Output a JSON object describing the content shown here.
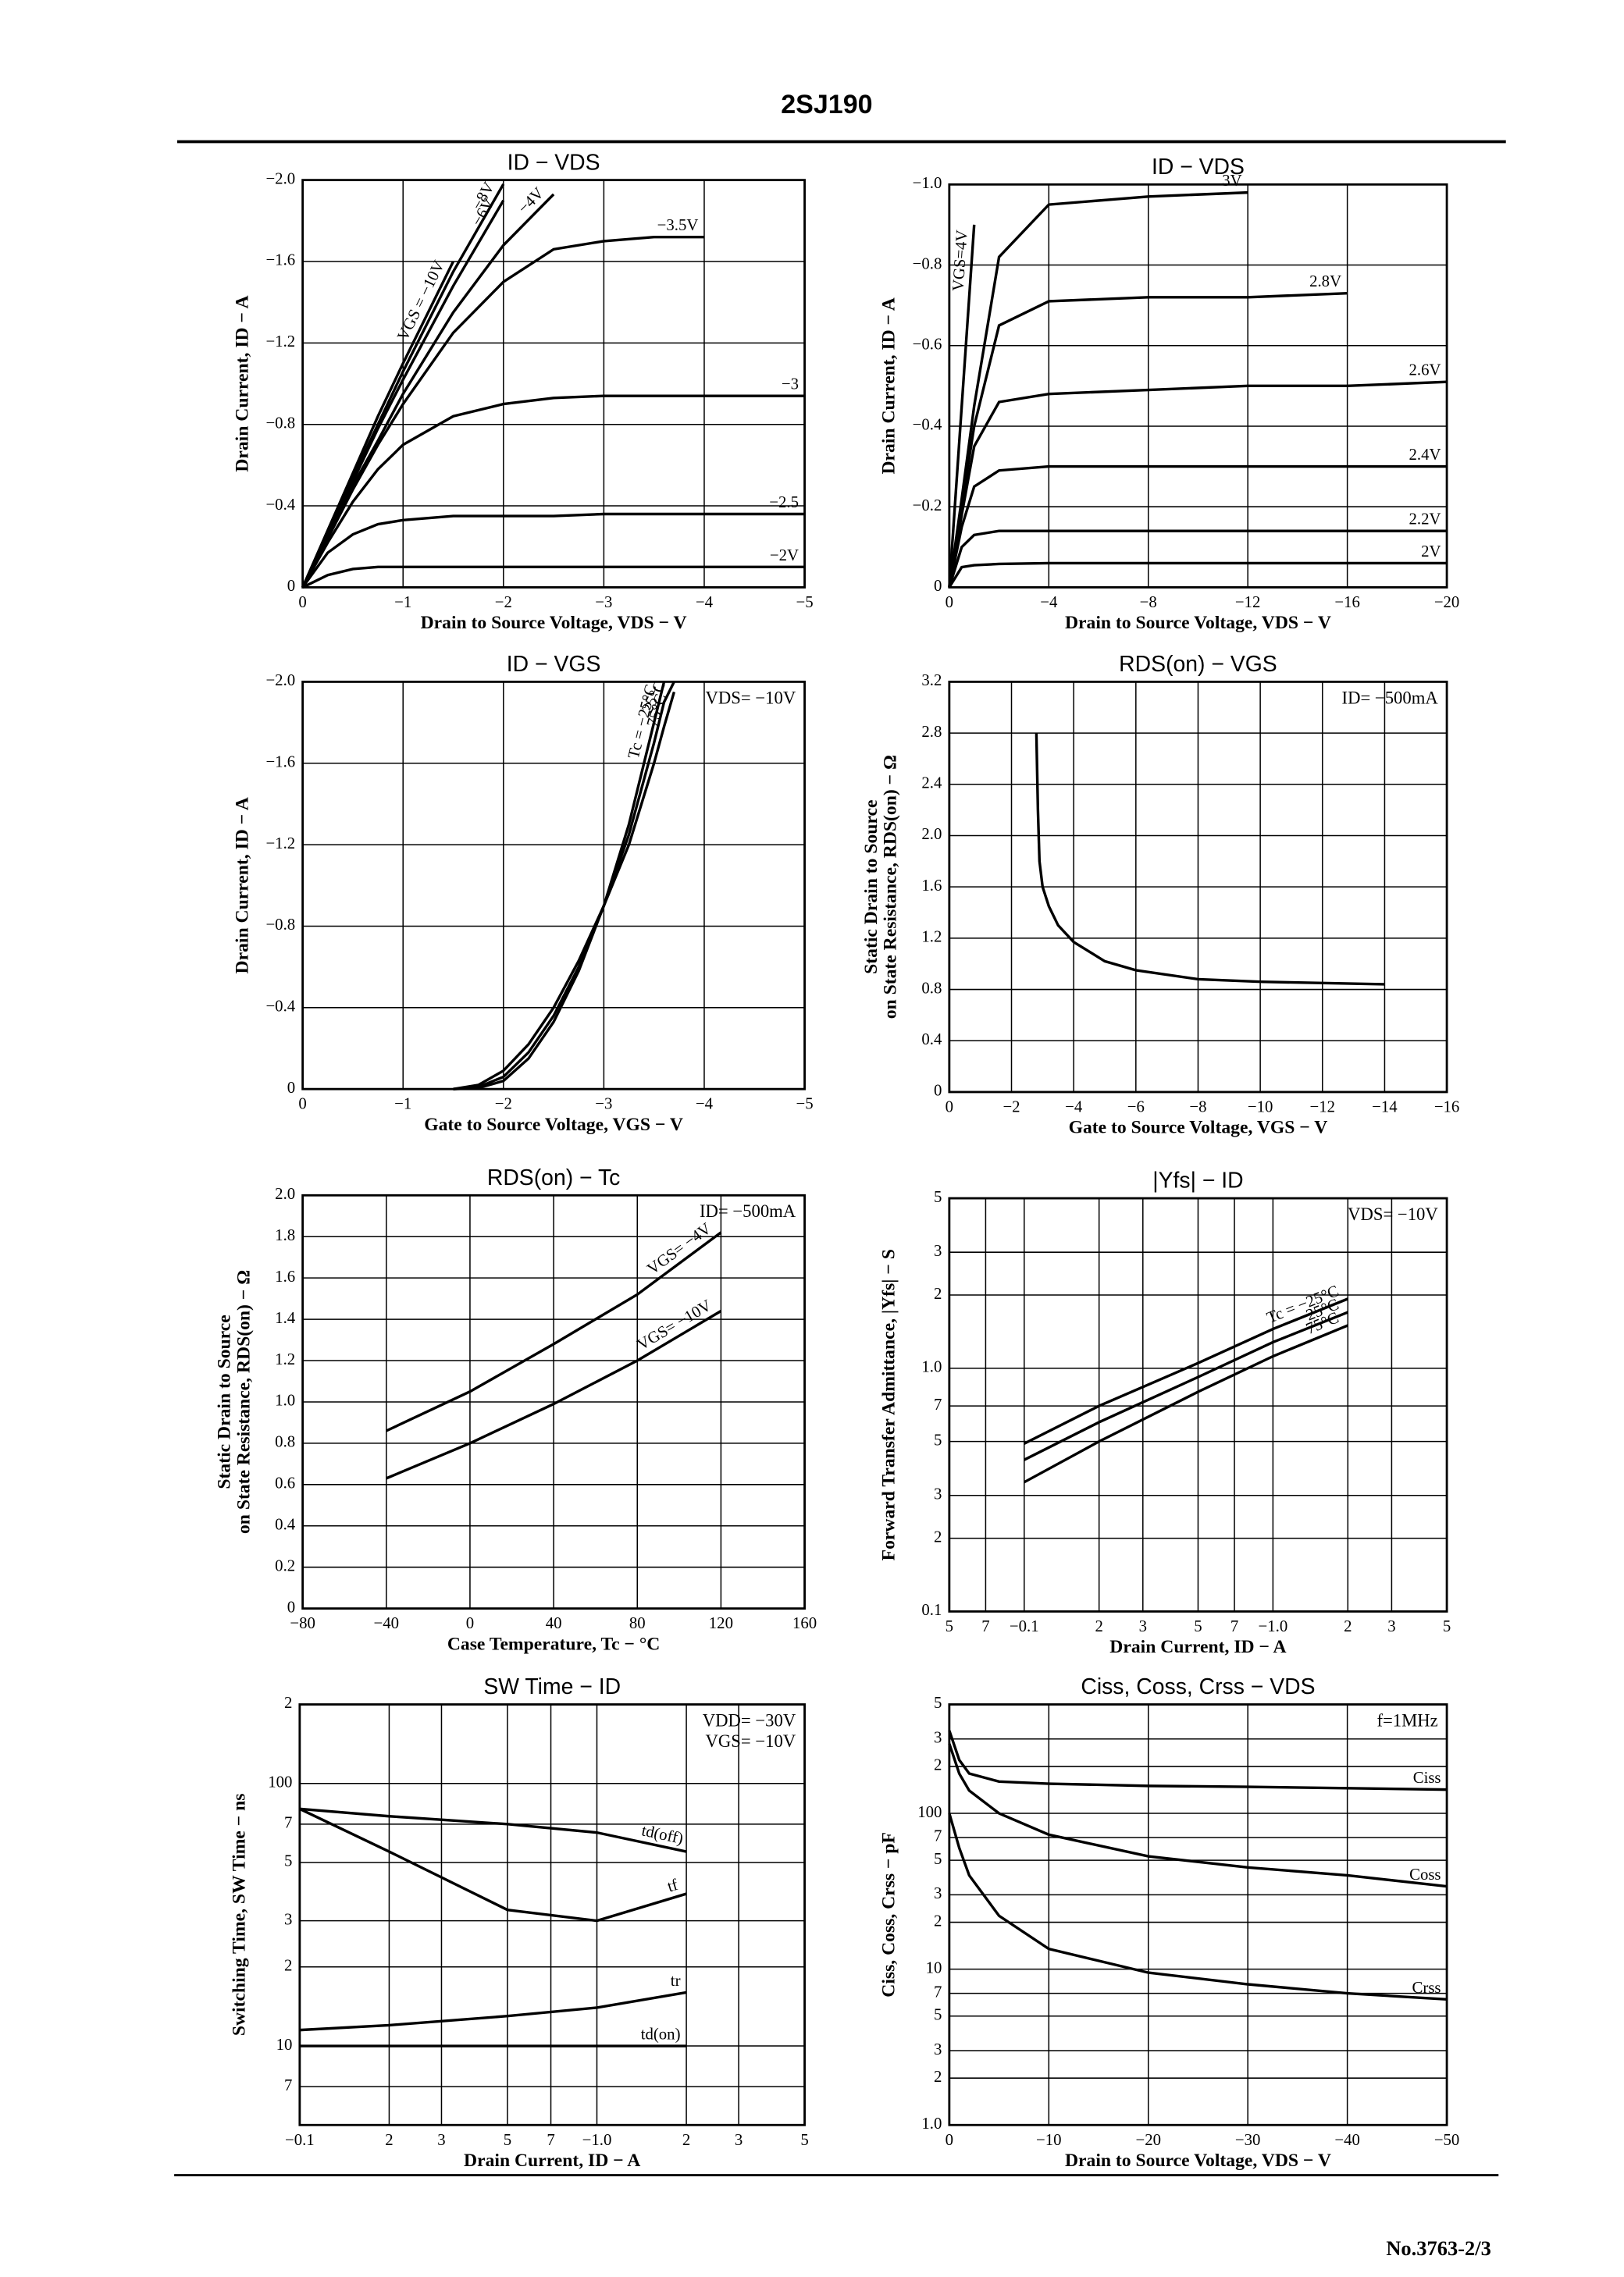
{
  "header": {
    "title": "2SJ190"
  },
  "footer": {
    "page": "No.3763-2/3"
  },
  "chart_data": [
    {
      "type": "line",
      "title": "ID − VDS",
      "xlabel": "Drain to Source Voltage, VDS − V",
      "ylabel": "Drain Current, ID − A",
      "color": "#000000",
      "grid": true,
      "xlim": [
        0,
        -5
      ],
      "ylim": [
        0,
        -2
      ],
      "xticks": [
        0,
        {
          "value": -1,
          "label": "−1"
        },
        {
          "value": -2,
          "label": "−2"
        },
        {
          "value": -3,
          "label": "−3"
        },
        {
          "value": -4,
          "label": "−4"
        },
        {
          "value": -5,
          "label": "−5"
        }
      ],
      "yticks": [
        0,
        {
          "value": -0.4,
          "label": "−0.4"
        },
        {
          "value": -0.8,
          "label": "−0.8"
        },
        {
          "value": -1.2,
          "label": "−1.2"
        },
        {
          "value": -1.6,
          "label": "−1.6"
        },
        {
          "value": -2,
          "label": "−2.0"
        }
      ],
      "x": [
        0,
        -0.25,
        -0.5,
        -0.75,
        -1,
        -1.5,
        -2,
        -2.5,
        -3,
        -3.5,
        -4,
        -4.5,
        -5
      ],
      "series": [
        {
          "name": "VGS = −10V",
          "values": [
            0,
            -0.28,
            -0.56,
            -0.84,
            -1.1,
            -1.6,
            null,
            null,
            null,
            null,
            null,
            null,
            null
          ]
        },
        {
          "name": "−8V",
          "values": [
            0,
            -0.27,
            -0.54,
            -0.8,
            -1.06,
            -1.55,
            -1.98,
            null,
            null,
            null,
            null,
            null,
            null
          ]
        },
        {
          "name": "−6V",
          "values": [
            0,
            -0.26,
            -0.52,
            -0.78,
            -1.02,
            -1.48,
            -1.9,
            null,
            null,
            null,
            null,
            null,
            null
          ]
        },
        {
          "name": "−4V",
          "values": [
            0,
            -0.25,
            -0.5,
            -0.72,
            -0.95,
            -1.35,
            -1.68,
            -1.93,
            null,
            null,
            null,
            null,
            null
          ]
        },
        {
          "name": "−3.5V",
          "values": [
            0,
            -0.24,
            -0.48,
            -0.7,
            -0.9,
            -1.25,
            -1.5,
            -1.66,
            -1.7,
            -1.72,
            -1.72,
            null,
            null
          ]
        },
        {
          "name": "−3",
          "values": [
            0,
            -0.22,
            -0.42,
            -0.58,
            -0.7,
            -0.84,
            -0.9,
            -0.93,
            -0.94,
            -0.94,
            -0.94,
            -0.94,
            -0.94
          ]
        },
        {
          "name": "−2.5",
          "values": [
            0,
            -0.17,
            -0.26,
            -0.31,
            -0.33,
            -0.35,
            -0.35,
            -0.35,
            -0.36,
            -0.36,
            -0.36,
            -0.36,
            -0.36
          ]
        },
        {
          "name": "−2V",
          "values": [
            0,
            -0.06,
            -0.09,
            -0.1,
            -0.1,
            -0.1,
            -0.1,
            -0.1,
            -0.1,
            -0.1,
            -0.1,
            -0.1,
            -0.1
          ]
        }
      ]
    },
    {
      "type": "line",
      "title": "ID − VDS",
      "xlabel": "Drain to Source Voltage, VDS − V",
      "ylabel": "Drain Current, ID − A",
      "color": "#000000",
      "grid": true,
      "xlim": [
        0,
        -20
      ],
      "ylim": [
        0,
        -1
      ],
      "xticks": [
        0,
        {
          "value": -4,
          "label": "−4"
        },
        {
          "value": -8,
          "label": "−8"
        },
        {
          "value": -12,
          "label": "−12"
        },
        {
          "value": -16,
          "label": "−16"
        },
        {
          "value": -20,
          "label": "−20"
        }
      ],
      "yticks": [
        0,
        {
          "value": -0.2,
          "label": "−0.2"
        },
        {
          "value": -0.4,
          "label": "−0.4"
        },
        {
          "value": -0.6,
          "label": "−0.6"
        },
        {
          "value": -0.8,
          "label": "−0.8"
        },
        {
          "value": -1,
          "label": "−1.0"
        }
      ],
      "x": [
        0,
        -0.5,
        -1,
        -2,
        -4,
        -8,
        -12,
        -16,
        -20
      ],
      "series": [
        {
          "name": "VGS=4V",
          "values": [
            0,
            -0.45,
            -0.9,
            null,
            null,
            null,
            null,
            null,
            null
          ]
        },
        {
          "name": "3V",
          "values": [
            0,
            -0.22,
            -0.45,
            -0.82,
            -0.95,
            -0.97,
            -0.98,
            null,
            null
          ]
        },
        {
          "name": "2.8V",
          "values": [
            0,
            -0.2,
            -0.4,
            -0.65,
            -0.71,
            -0.72,
            -0.72,
            -0.73,
            null
          ]
        },
        {
          "name": "2.6V",
          "values": [
            0,
            -0.18,
            -0.35,
            -0.46,
            -0.48,
            -0.49,
            -0.5,
            -0.5,
            -0.51
          ]
        },
        {
          "name": "2.4V",
          "values": [
            0,
            -0.15,
            -0.25,
            -0.29,
            -0.3,
            -0.3,
            -0.3,
            -0.3,
            -0.3
          ]
        },
        {
          "name": "2.2V",
          "values": [
            0,
            -0.1,
            -0.13,
            -0.14,
            -0.14,
            -0.14,
            -0.14,
            -0.14,
            -0.14
          ]
        },
        {
          "name": "2V",
          "values": [
            0,
            -0.05,
            -0.055,
            -0.058,
            -0.06,
            -0.06,
            -0.06,
            -0.06,
            -0.06
          ]
        }
      ]
    },
    {
      "type": "line",
      "title": "ID − VGS",
      "xlabel": "Gate to Source Voltage, VGS − V",
      "ylabel": "Drain Current, ID − A",
      "color": "#000000",
      "grid": true,
      "annotations": [
        "VDS= −10V"
      ],
      "xlim": [
        0,
        -5
      ],
      "ylim": [
        0,
        -2
      ],
      "xticks": [
        0,
        {
          "value": -1,
          "label": "−1"
        },
        {
          "value": -2,
          "label": "−2"
        },
        {
          "value": -3,
          "label": "−3"
        },
        {
          "value": -4,
          "label": "−4"
        },
        {
          "value": -5,
          "label": "−5"
        }
      ],
      "yticks": [
        0,
        {
          "value": -0.4,
          "label": "−0.4"
        },
        {
          "value": -0.8,
          "label": "−0.8"
        },
        {
          "value": -1.2,
          "label": "−1.2"
        },
        {
          "value": -1.6,
          "label": "−1.6"
        },
        {
          "value": -2,
          "label": "−2.0"
        }
      ],
      "x": [
        -1.5,
        -1.75,
        -2,
        -2.25,
        -2.5,
        -2.75,
        -3,
        -3.25,
        -3.5,
        -3.6,
        -3.7
      ],
      "series": [
        {
          "name": "Tc = −25°C",
          "values": [
            0,
            -0.005,
            -0.04,
            -0.15,
            -0.33,
            -0.58,
            -0.9,
            -1.3,
            -1.8,
            -2,
            null
          ]
        },
        {
          "name": "25°C",
          "values": [
            0,
            -0.01,
            -0.06,
            -0.18,
            -0.36,
            -0.6,
            -0.9,
            -1.25,
            -1.7,
            -1.9,
            -2
          ]
        },
        {
          "name": "75°C",
          "values": [
            0,
            -0.02,
            -0.09,
            -0.22,
            -0.4,
            -0.63,
            -0.9,
            -1.2,
            -1.6,
            -1.78,
            -1.95
          ]
        }
      ]
    },
    {
      "type": "line",
      "title": "RDS(on) − VGS",
      "xlabel": "Gate to Source Voltage, VGS − V",
      "ylabel": [
        "Static Drain to Source",
        "on State Resistance, RDS(on) − Ω"
      ],
      "color": "#000000",
      "grid": true,
      "annotations": [
        "ID= −500mA"
      ],
      "xlim": [
        0,
        -16
      ],
      "ylim": [
        0,
        3.2
      ],
      "xticks": [
        0,
        {
          "value": -2,
          "label": "−2"
        },
        {
          "value": -4,
          "label": "−4"
        },
        {
          "value": -6,
          "label": "−6"
        },
        {
          "value": -8,
          "label": "−8"
        },
        {
          "value": -10,
          "label": "−10"
        },
        {
          "value": -12,
          "label": "−12"
        },
        {
          "value": -14,
          "label": "−14"
        },
        {
          "value": -16,
          "label": "−16"
        }
      ],
      "yticks": [
        0,
        0.4,
        0.8,
        1.2,
        1.6,
        {
          "value": 2,
          "label": "2.0"
        },
        2.4,
        2.8,
        3.2
      ],
      "x": [
        -2.8,
        -2.85,
        -2.9,
        -3,
        -3.2,
        -3.5,
        -4,
        -5,
        -6,
        -8,
        -10,
        -12,
        -14
      ],
      "series": [
        {
          "values": [
            2.8,
            2.2,
            1.8,
            1.6,
            1.45,
            1.3,
            1.17,
            1.02,
            0.95,
            0.88,
            0.86,
            0.85,
            0.84
          ]
        }
      ]
    },
    {
      "type": "line",
      "title": "RDS(on) − Tc",
      "xlabel": "Case Temperature, Tc − °C",
      "ylabel": [
        "Static Drain to Source",
        "on State Resistance, RDS(on) − Ω"
      ],
      "color": "#000000",
      "grid": true,
      "annotations": [
        "ID= −500mA"
      ],
      "xlim": [
        -80,
        160
      ],
      "ylim": [
        0,
        2
      ],
      "xticks": [
        {
          "value": -80,
          "label": "−80"
        },
        {
          "value": -40,
          "label": "−40"
        },
        0,
        40,
        80,
        120,
        160
      ],
      "yticks": [
        0,
        0.2,
        0.4,
        0.6,
        0.8,
        {
          "value": 1,
          "label": "1.0"
        },
        1.2,
        1.4,
        1.6,
        1.8,
        {
          "value": 2,
          "label": "2.0"
        }
      ],
      "x": [
        -40,
        0,
        40,
        80,
        120
      ],
      "series": [
        {
          "name": "VGS= −4V",
          "values": [
            0.86,
            1.05,
            1.28,
            1.52,
            1.82
          ]
        },
        {
          "name": "VGS= −10V",
          "values": [
            0.63,
            0.8,
            0.99,
            1.2,
            1.44
          ]
        }
      ]
    },
    {
      "type": "line",
      "title": "|Yfs| − ID",
      "xlabel": "Drain Current, ID − A",
      "ylabel": "Forward Transfer Admittance, |Yfs| − S",
      "color": "#000000",
      "grid": true,
      "xscale": "log",
      "yscale": "log",
      "annotations": [
        "VDS= −10V"
      ],
      "xlim": [
        0.05,
        5
      ],
      "ylim": [
        0.1,
        5
      ],
      "xticks": [
        {
          "value": 0.05,
          "label": "5"
        },
        {
          "value": 0.07,
          "label": "7"
        },
        {
          "value": 0.1,
          "label": "−0.1"
        },
        {
          "value": 0.2,
          "label": "2"
        },
        {
          "value": 0.3,
          "label": "3"
        },
        {
          "value": 0.5,
          "label": "5"
        },
        {
          "value": 0.7,
          "label": "7"
        },
        {
          "value": 1,
          "label": "−1.0"
        },
        2,
        3,
        5
      ],
      "yticks": [
        0.1,
        {
          "value": 0.2,
          "label": "2"
        },
        {
          "value": 0.3,
          "label": "3"
        },
        {
          "value": 0.5,
          "label": "5"
        },
        {
          "value": 0.7,
          "label": "7"
        },
        {
          "value": 1,
          "label": "1.0"
        },
        2,
        3,
        5
      ],
      "x": [
        0.1,
        0.2,
        0.5,
        1,
        2
      ],
      "series": [
        {
          "name": "Tc = −25°C",
          "values": [
            0.49,
            0.7,
            1.05,
            1.45,
            1.93
          ]
        },
        {
          "name": "25°C",
          "values": [
            0.42,
            0.6,
            0.92,
            1.28,
            1.7
          ]
        },
        {
          "name": "75°C",
          "values": [
            0.34,
            0.5,
            0.8,
            1.12,
            1.5
          ]
        }
      ]
    },
    {
      "type": "line",
      "title": "SW Time − ID",
      "xlabel": "Drain Current, ID − A",
      "ylabel": "Switching Time, SW Time − ns",
      "color": "#000000",
      "grid": true,
      "xscale": "log",
      "yscale": "log",
      "annotations": [
        "VDD= −30V",
        "VGS= −10V"
      ],
      "xlim": [
        0.1,
        5
      ],
      "ylim": [
        5,
        200
      ],
      "xticks": [
        {
          "value": 0.1,
          "label": "−0.1"
        },
        {
          "value": 0.2,
          "label": "2"
        },
        {
          "value": 0.3,
          "label": "3"
        },
        {
          "value": 0.5,
          "label": "5"
        },
        {
          "value": 0.7,
          "label": "7"
        },
        {
          "value": 1,
          "label": "−1.0"
        },
        2,
        3,
        5
      ],
      "yticks": [
        7,
        10,
        {
          "value": 20,
          "label": "2"
        },
        {
          "value": 30,
          "label": "3"
        },
        {
          "value": 50,
          "label": "5"
        },
        {
          "value": 70,
          "label": "7"
        },
        100,
        {
          "value": 200,
          "label": "2"
        }
      ],
      "x": [
        0.1,
        0.2,
        0.5,
        1,
        2
      ],
      "series": [
        {
          "name": "td(off)",
          "values": [
            80,
            75,
            70,
            65,
            55
          ]
        },
        {
          "name": "tf",
          "values": [
            80,
            55,
            33,
            30,
            38
          ]
        },
        {
          "name": "tr",
          "values": [
            11.5,
            12,
            13,
            14,
            16
          ]
        },
        {
          "name": "td(on)",
          "values": [
            10,
            10,
            10,
            10,
            10
          ]
        }
      ]
    },
    {
      "type": "line",
      "title": "Ciss, Coss, Crss − VDS",
      "xlabel": "Drain to Source Voltage, VDS − V",
      "ylabel": "Ciss, Coss, Crss − pF",
      "color": "#000000",
      "grid": true,
      "yscale": "log",
      "annotations": [
        "f=1MHz"
      ],
      "xlim": [
        0,
        -50
      ],
      "ylim": [
        1,
        500
      ],
      "xticks": [
        0,
        {
          "value": -10,
          "label": "−10"
        },
        {
          "value": -20,
          "label": "−20"
        },
        {
          "value": -30,
          "label": "−30"
        },
        {
          "value": -40,
          "label": "−40"
        },
        {
          "value": -50,
          "label": "−50"
        }
      ],
      "yticks": [
        {
          "value": 1,
          "label": "1.0"
        },
        2,
        3,
        5,
        7,
        10,
        {
          "value": 20,
          "label": "2"
        },
        {
          "value": 30,
          "label": "3"
        },
        {
          "value": 50,
          "label": "5"
        },
        {
          "value": 70,
          "label": "7"
        },
        100,
        {
          "value": 200,
          "label": "2"
        },
        {
          "value": 300,
          "label": "3"
        },
        {
          "value": 500,
          "label": "5"
        }
      ],
      "x": [
        0,
        -1,
        -2,
        -5,
        -10,
        -20,
        -30,
        -40,
        -50
      ],
      "series": [
        {
          "name": "Ciss",
          "values": [
            340,
            220,
            180,
            160,
            155,
            150,
            148,
            145,
            142
          ]
        },
        {
          "name": "Coss",
          "values": [
            280,
            180,
            140,
            100,
            73,
            53,
            45,
            40,
            34
          ]
        },
        {
          "name": "Crss",
          "values": [
            100,
            60,
            40,
            22,
            13.5,
            9.5,
            8,
            7,
            6.4
          ]
        }
      ]
    }
  ]
}
